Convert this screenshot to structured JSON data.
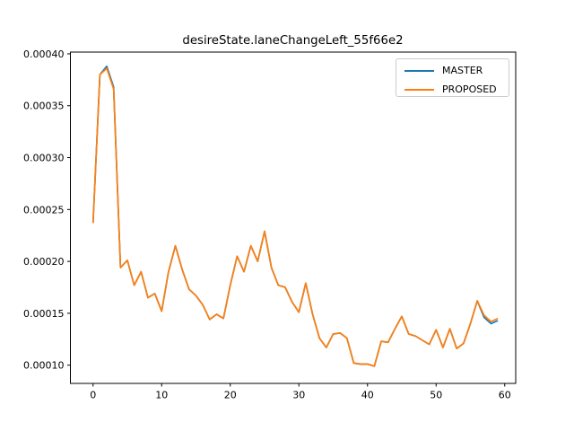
{
  "figure": {
    "title": "desireState.laneChangeLeft_55f66e2",
    "background": "#ffffff"
  },
  "legend": {
    "position": "upper right",
    "entries": [
      {
        "label": "MASTER",
        "color": "#1f77b4"
      },
      {
        "label": "PROPOSED",
        "color": "#ff7f0e"
      }
    ]
  },
  "chart_data": {
    "type": "line",
    "title": "desireState.laneChangeLeft_55f66e2",
    "xlabel": "",
    "ylabel": "",
    "grid": false,
    "legend_position": "upper right",
    "xlim": [
      -3.3,
      61.6
    ],
    "ylim": [
      8.24e-05,
      0.0004017
    ],
    "x_ticks": [
      {
        "v": 0,
        "label": "0"
      },
      {
        "v": 10,
        "label": "10"
      },
      {
        "v": 20,
        "label": "20"
      },
      {
        "v": 30,
        "label": "30"
      },
      {
        "v": 40,
        "label": "40"
      },
      {
        "v": 50,
        "label": "50"
      },
      {
        "v": 60,
        "label": "60"
      }
    ],
    "y_ticks": [
      {
        "v": 0.0001,
        "label": "0.00010"
      },
      {
        "v": 0.00015,
        "label": "0.00015"
      },
      {
        "v": 0.0002,
        "label": "0.00020"
      },
      {
        "v": 0.00025,
        "label": "0.00025"
      },
      {
        "v": 0.0003,
        "label": "0.00030"
      },
      {
        "v": 0.00035,
        "label": "0.00035"
      },
      {
        "v": 0.0004,
        "label": "0.00040"
      }
    ],
    "x": [
      0,
      1,
      2,
      3,
      4,
      5,
      6,
      7,
      8,
      9,
      10,
      11,
      12,
      13,
      14,
      15,
      16,
      17,
      18,
      19,
      20,
      21,
      22,
      23,
      24,
      25,
      26,
      27,
      28,
      29,
      30,
      31,
      32,
      33,
      34,
      35,
      36,
      37,
      38,
      39,
      40,
      41,
      42,
      43,
      44,
      45,
      46,
      47,
      48,
      49,
      50,
      51,
      52,
      53,
      54,
      55,
      56,
      57,
      58,
      59
    ],
    "series": [
      {
        "name": "MASTER",
        "color": "#1f77b4",
        "values": [
          0.000237,
          0.00038,
          0.000388,
          0.000368,
          0.000194,
          0.000201,
          0.000177,
          0.00019,
          0.000165,
          0.000169,
          0.000152,
          0.00019,
          0.000215,
          0.000192,
          0.000173,
          0.000167,
          0.000158,
          0.000144,
          0.000149,
          0.000145,
          0.000177,
          0.000205,
          0.00019,
          0.000215,
          0.0002,
          0.000229,
          0.000194,
          0.000177,
          0.000175,
          0.000161,
          0.000151,
          0.000179,
          0.000149,
          0.000126,
          0.000117,
          0.00013,
          0.000131,
          0.000126,
          0.000102,
          0.000101,
          0.000101,
          9.9e-05,
          0.000123,
          0.000122,
          0.000135,
          0.000147,
          0.00013,
          0.000128,
          0.000124,
          0.00012,
          0.000134,
          0.000117,
          0.000135,
          0.000116,
          0.000121,
          0.00014,
          0.000162,
          0.000146,
          0.00014,
          0.000143
        ]
      },
      {
        "name": "PROPOSED",
        "color": "#ff7f0e",
        "values": [
          0.000237,
          0.00038,
          0.000386,
          0.000366,
          0.000194,
          0.000201,
          0.000177,
          0.00019,
          0.000165,
          0.000169,
          0.000152,
          0.00019,
          0.000215,
          0.000192,
          0.000173,
          0.000167,
          0.000158,
          0.000144,
          0.000149,
          0.000145,
          0.000177,
          0.000205,
          0.00019,
          0.000215,
          0.0002,
          0.000229,
          0.000194,
          0.000177,
          0.000175,
          0.000161,
          0.000151,
          0.000179,
          0.000149,
          0.000126,
          0.000117,
          0.00013,
          0.000131,
          0.000126,
          0.000102,
          0.000101,
          0.000101,
          9.9e-05,
          0.000123,
          0.000122,
          0.000135,
          0.000147,
          0.00013,
          0.000128,
          0.000124,
          0.00012,
          0.000134,
          0.000117,
          0.000135,
          0.000116,
          0.000121,
          0.00014,
          0.000162,
          0.000148,
          0.000142,
          0.000145
        ]
      }
    ]
  }
}
